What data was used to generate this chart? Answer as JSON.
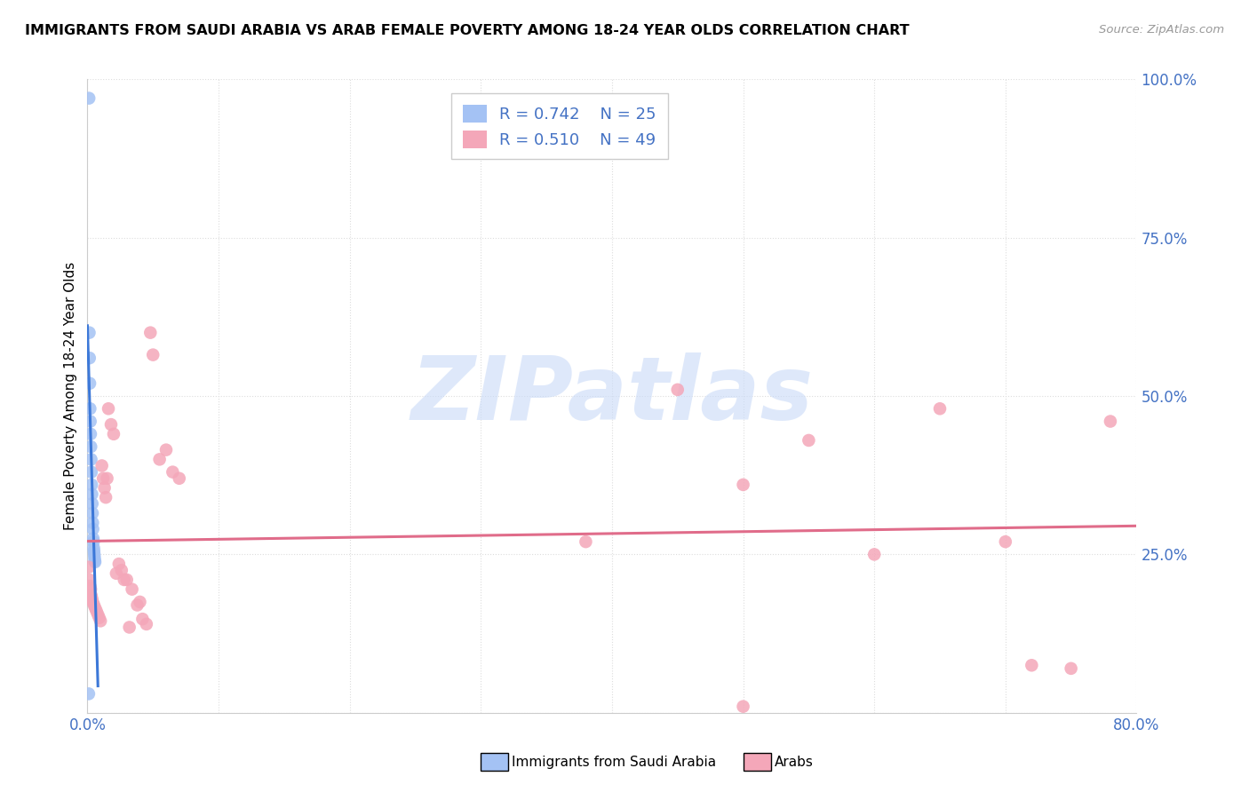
{
  "title": "IMMIGRANTS FROM SAUDI ARABIA VS ARAB FEMALE POVERTY AMONG 18-24 YEAR OLDS CORRELATION CHART",
  "source": "Source: ZipAtlas.com",
  "ylabel": "Female Poverty Among 18-24 Year Olds",
  "blue_R": "0.742",
  "blue_N": "25",
  "pink_R": "0.510",
  "pink_N": "49",
  "blue_color": "#a4c2f4",
  "pink_color": "#f4a7b9",
  "blue_line_color": "#3c78d8",
  "pink_line_color": "#e06c8a",
  "blue_scatter_x": [
    0.0012,
    0.0014,
    0.0016,
    0.0018,
    0.002,
    0.0022,
    0.0024,
    0.0026,
    0.0028,
    0.003,
    0.0032,
    0.0034,
    0.0036,
    0.0038,
    0.004,
    0.0042,
    0.0044,
    0.0046,
    0.0048,
    0.005,
    0.0052,
    0.0054,
    0.0056,
    0.0058,
    0.001
  ],
  "blue_scatter_y": [
    0.97,
    0.6,
    0.56,
    0.52,
    0.48,
    0.46,
    0.44,
    0.42,
    0.4,
    0.38,
    0.36,
    0.345,
    0.33,
    0.315,
    0.3,
    0.29,
    0.275,
    0.27,
    0.26,
    0.255,
    0.25,
    0.245,
    0.24,
    0.238,
    0.03
  ],
  "pink_scatter_x": [
    0.001,
    0.0015,
    0.002,
    0.0025,
    0.003,
    0.0035,
    0.004,
    0.005,
    0.006,
    0.007,
    0.008,
    0.009,
    0.01,
    0.011,
    0.012,
    0.013,
    0.014,
    0.015,
    0.016,
    0.018,
    0.02,
    0.022,
    0.024,
    0.026,
    0.028,
    0.03,
    0.032,
    0.034,
    0.038,
    0.04,
    0.042,
    0.045,
    0.048,
    0.05,
    0.055,
    0.06,
    0.065,
    0.07,
    0.38,
    0.45,
    0.5,
    0.55,
    0.6,
    0.65,
    0.7,
    0.72,
    0.75,
    0.78,
    0.5
  ],
  "pink_scatter_y": [
    0.23,
    0.21,
    0.2,
    0.195,
    0.185,
    0.18,
    0.175,
    0.17,
    0.165,
    0.16,
    0.155,
    0.15,
    0.145,
    0.39,
    0.37,
    0.355,
    0.34,
    0.37,
    0.48,
    0.455,
    0.44,
    0.22,
    0.235,
    0.225,
    0.21,
    0.21,
    0.135,
    0.195,
    0.17,
    0.175,
    0.148,
    0.14,
    0.6,
    0.565,
    0.4,
    0.415,
    0.38,
    0.37,
    0.27,
    0.51,
    0.36,
    0.43,
    0.25,
    0.48,
    0.27,
    0.075,
    0.07,
    0.46,
    0.01
  ],
  "xlim": [
    0.0,
    0.8
  ],
  "ylim": [
    0.0,
    1.0
  ],
  "ytick_positions": [
    0.0,
    0.25,
    0.5,
    0.75,
    1.0
  ],
  "ytick_labels": [
    "",
    "25.0%",
    "50.0%",
    "75.0%",
    "100.0%"
  ],
  "xtick_positions": [
    0.0,
    0.1,
    0.2,
    0.3,
    0.4,
    0.5,
    0.6,
    0.7,
    0.8
  ],
  "xtick_labels": [
    "0.0%",
    "",
    "",
    "",
    "",
    "",
    "",
    "",
    "80.0%"
  ],
  "background_color": "#ffffff",
  "grid_color": "#dddddd",
  "tick_color": "#4472c4",
  "watermark_text": "ZIPatlas",
  "watermark_color": "#c9daf8",
  "legend_label_blue": "Immigrants from Saudi Arabia",
  "legend_label_pink": "Arabs"
}
